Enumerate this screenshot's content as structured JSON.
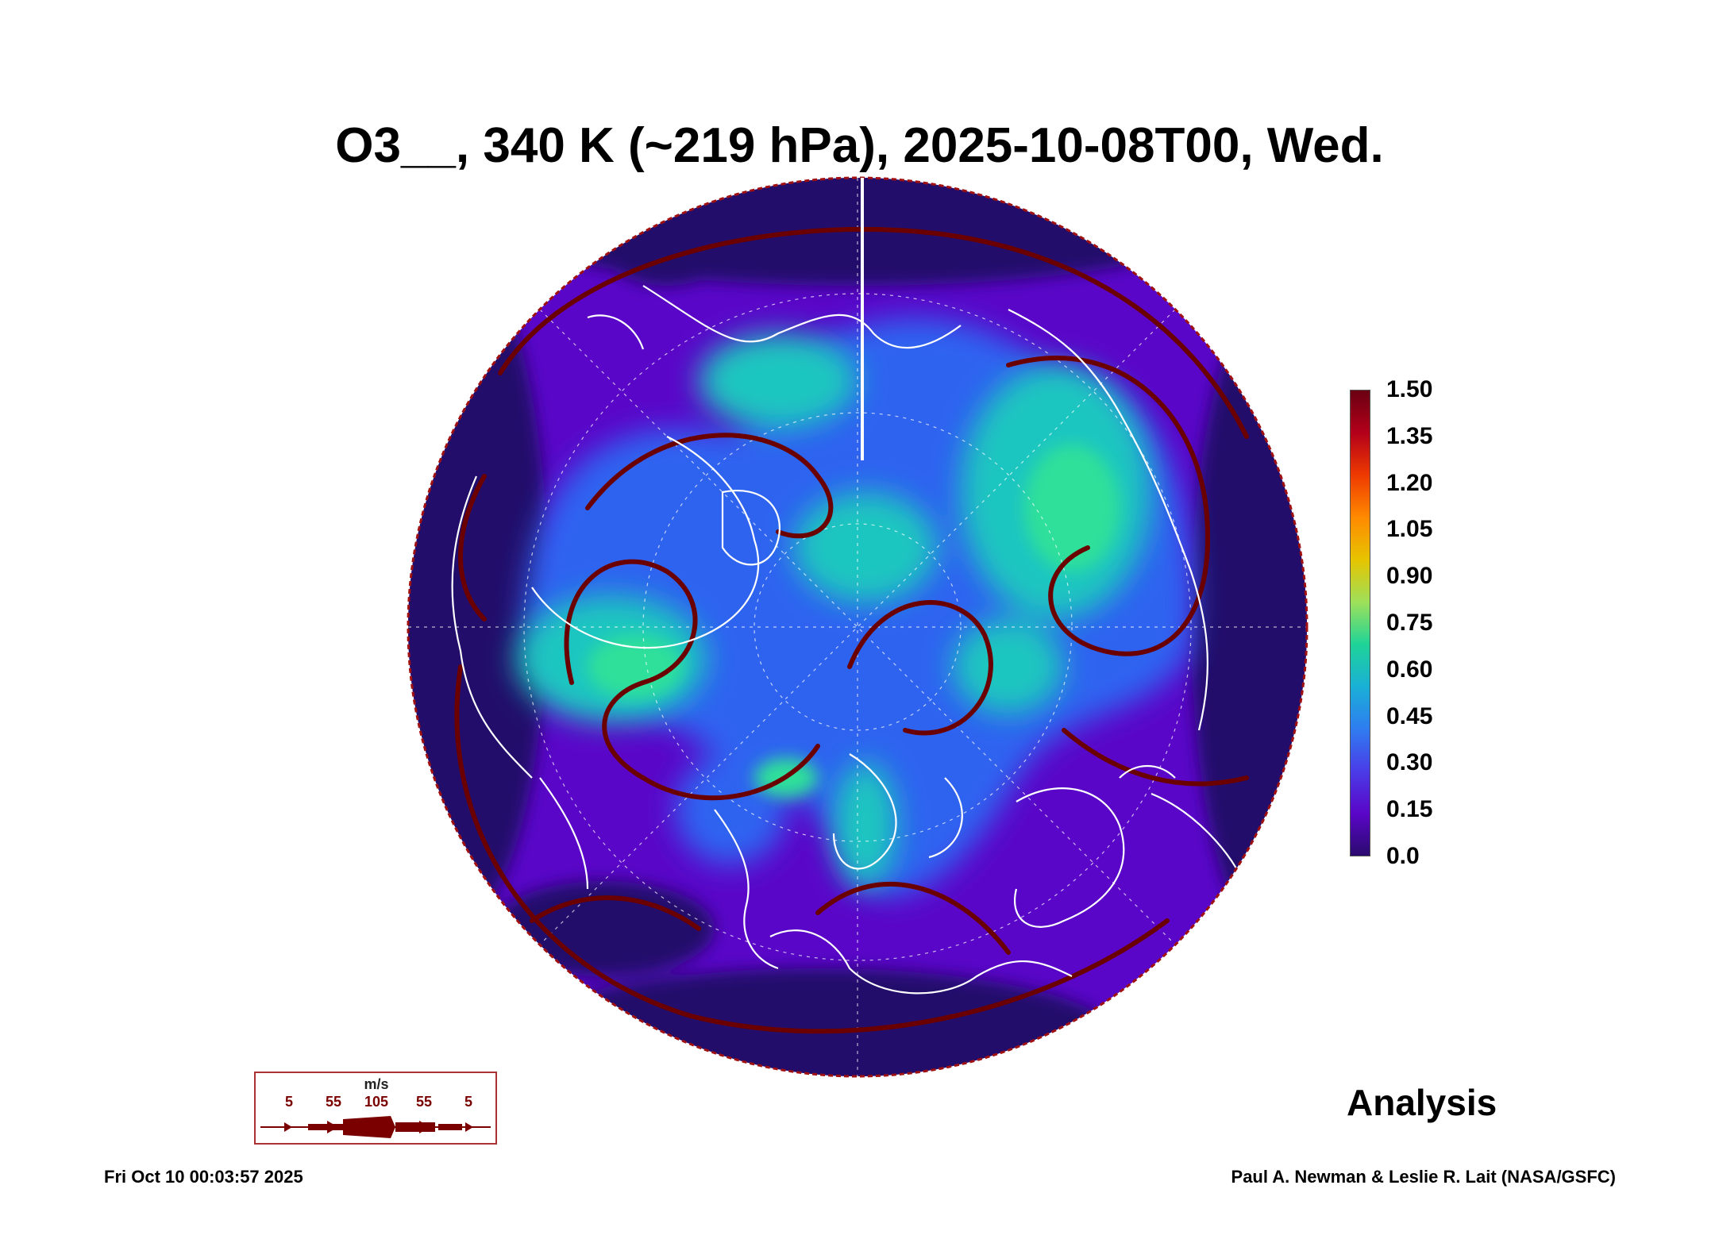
{
  "title": "O3__, 340 K (~219 hPa), 2025-10-08T00, Wed.",
  "colorbar": {
    "labels": [
      "1.50",
      "1.35",
      "1.20",
      "1.05",
      "0.90",
      "0.75",
      "0.60",
      "0.45",
      "0.30",
      "0.15",
      "0.0"
    ],
    "colors": [
      "#6a0012",
      "#b3001a",
      "#ee3a00",
      "#ff8a00",
      "#e6c400",
      "#9ee05a",
      "#1fd497",
      "#19b0d6",
      "#2f7df0",
      "#4a3ce8",
      "#5a06c8",
      "#2a0a6e"
    ]
  },
  "map": {
    "colors": {
      "background": "#5a06c8",
      "low": "#20106a",
      "mid": "#2f64f0",
      "high": "#1ec6c0",
      "peak": "#2ee09a",
      "streamline": "#6b0000",
      "coast": "#ffffff"
    }
  },
  "legend": {
    "unit": "m/s",
    "values": [
      "5",
      "55",
      "105",
      "55",
      "5"
    ]
  },
  "analysis_label": "Analysis",
  "footer": {
    "timestamp": "Fri Oct 10 00:03:57 2025",
    "credit": "Paul A. Newman & Leslie R. Lait (NASA/GSFC)"
  }
}
